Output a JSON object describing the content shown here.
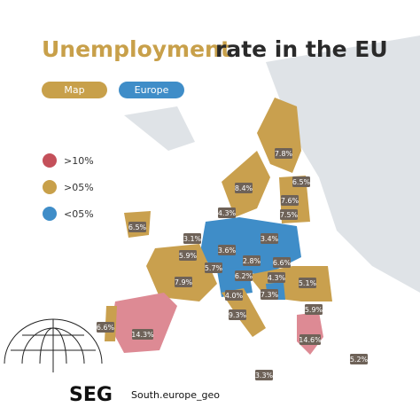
{
  "header": {
    "title_highlight": "Unemployment",
    "title_rest": "rate in the EU",
    "pills": [
      "Map",
      "Europe"
    ]
  },
  "legend": [
    ">10%",
    ">05%",
    "<05%"
  ],
  "labels": [
    "7.8%",
    "6.5%",
    "8.4%",
    "7.6%",
    "4.3%",
    "7.5%",
    "6.5%",
    "3.1%",
    "3.6%",
    "3.4%",
    "5.9%",
    "2.8%",
    "6.6%",
    "5.7%",
    "6.2%",
    "4.3%",
    "5.1%",
    "7.9%",
    "4.0%",
    "7.3%",
    "9.3%",
    "5.9%",
    "6.6%",
    "14.3%",
    "14.6%",
    "3.3%",
    "5.2%"
  ],
  "footer": {
    "logo": "SEG",
    "handle": "South.europe_geo"
  }
}
